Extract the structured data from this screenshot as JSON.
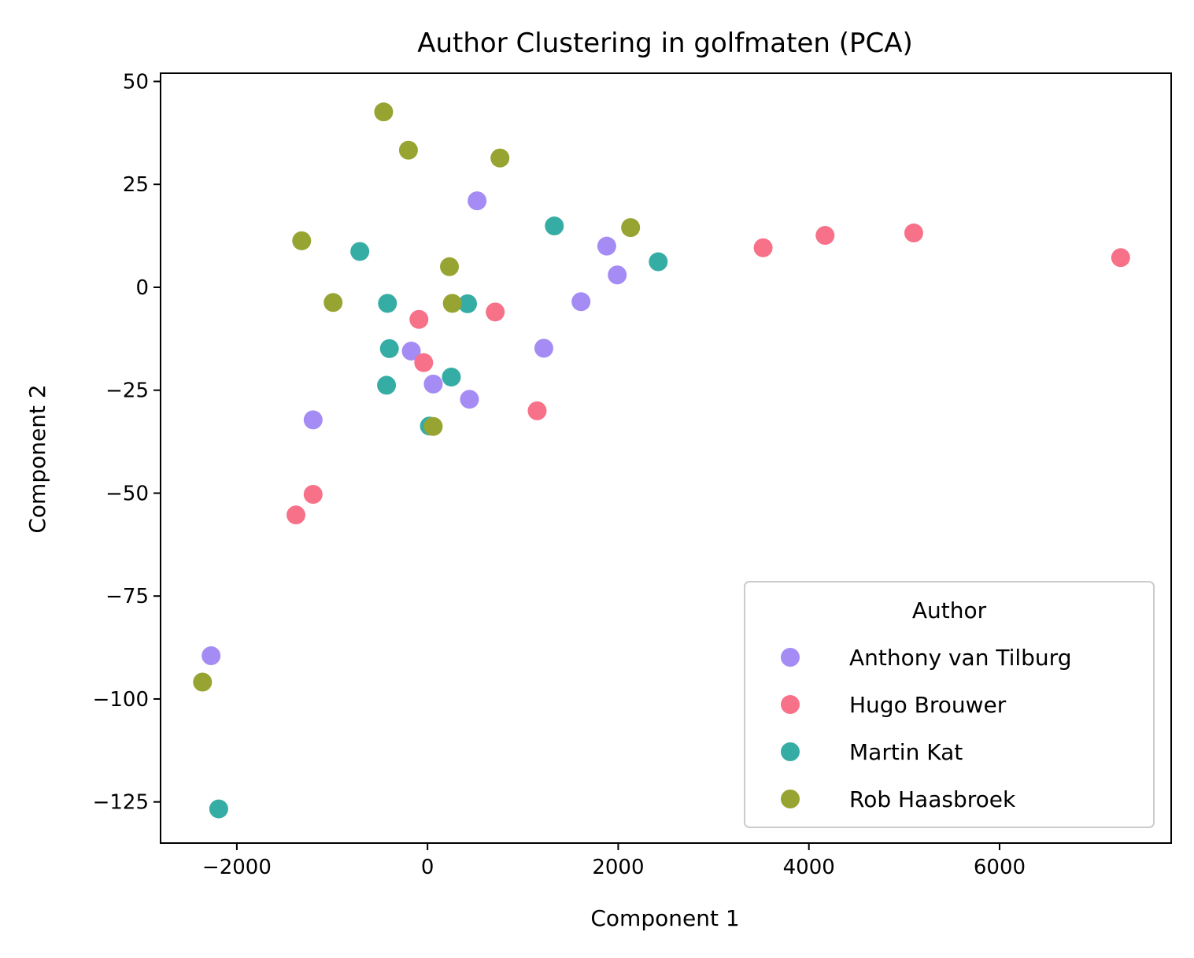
{
  "chart_data": {
    "type": "scatter",
    "title": "Author Clustering in golfmaten (PCA)",
    "xlabel": "Component 1",
    "ylabel": "Component 2",
    "xlim": [
      -2800,
      7800
    ],
    "ylim": [
      -135,
      52
    ],
    "xticks": [
      -2000,
      0,
      2000,
      4000,
      6000
    ],
    "yticks": [
      50,
      25,
      0,
      -25,
      -50,
      -75,
      -100,
      -125
    ],
    "xtick_labels": [
      "−2000",
      "0",
      "2000",
      "4000",
      "6000"
    ],
    "ytick_labels": [
      "50",
      "25",
      "0",
      "−25",
      "−50",
      "−75",
      "−100",
      "−125"
    ],
    "grid": false,
    "legend": {
      "title": "Author",
      "placement": "lower-right"
    },
    "series": [
      {
        "name": "Anthony van Tilburg",
        "color": "#a48cf4",
        "points": [
          [
            520,
            21
          ],
          [
            1880,
            10
          ],
          [
            1990,
            3
          ],
          [
            1610,
            -3.5
          ],
          [
            1220,
            -14.8
          ],
          [
            -170,
            -15.5
          ],
          [
            60,
            -23.5
          ],
          [
            440,
            -27.2
          ],
          [
            -1200,
            -32.2
          ],
          [
            -2270,
            -89.5
          ]
        ]
      },
      {
        "name": "Hugo Brouwer",
        "color": "#f77189",
        "points": [
          [
            7270,
            7.2
          ],
          [
            5100,
            13.2
          ],
          [
            4170,
            12.6
          ],
          [
            3520,
            9.6
          ],
          [
            710,
            -6
          ],
          [
            -90,
            -7.8
          ],
          [
            -40,
            -18.3
          ],
          [
            1150,
            -30
          ],
          [
            -1200,
            -50.3
          ],
          [
            -1380,
            -55.3
          ]
        ]
      },
      {
        "name": "Martin Kat",
        "color": "#36ada4",
        "points": [
          [
            1330,
            14.9
          ],
          [
            2420,
            6.2
          ],
          [
            -710,
            8.7
          ],
          [
            -420,
            -3.9
          ],
          [
            420,
            -4
          ],
          [
            -400,
            -14.9
          ],
          [
            250,
            -21.8
          ],
          [
            -430,
            -23.8
          ],
          [
            20,
            -33.7
          ],
          [
            -2190,
            -126.7
          ]
        ]
      },
      {
        "name": "Rob Haasbroek",
        "color": "#97a431",
        "points": [
          [
            -460,
            42.6
          ],
          [
            -200,
            33.3
          ],
          [
            760,
            31.4
          ],
          [
            2130,
            14.5
          ],
          [
            -1320,
            11.3
          ],
          [
            230,
            5
          ],
          [
            -990,
            -3.7
          ],
          [
            260,
            -3.9
          ],
          [
            60,
            -33.8
          ],
          [
            -2360,
            -95.9
          ]
        ]
      }
    ]
  }
}
